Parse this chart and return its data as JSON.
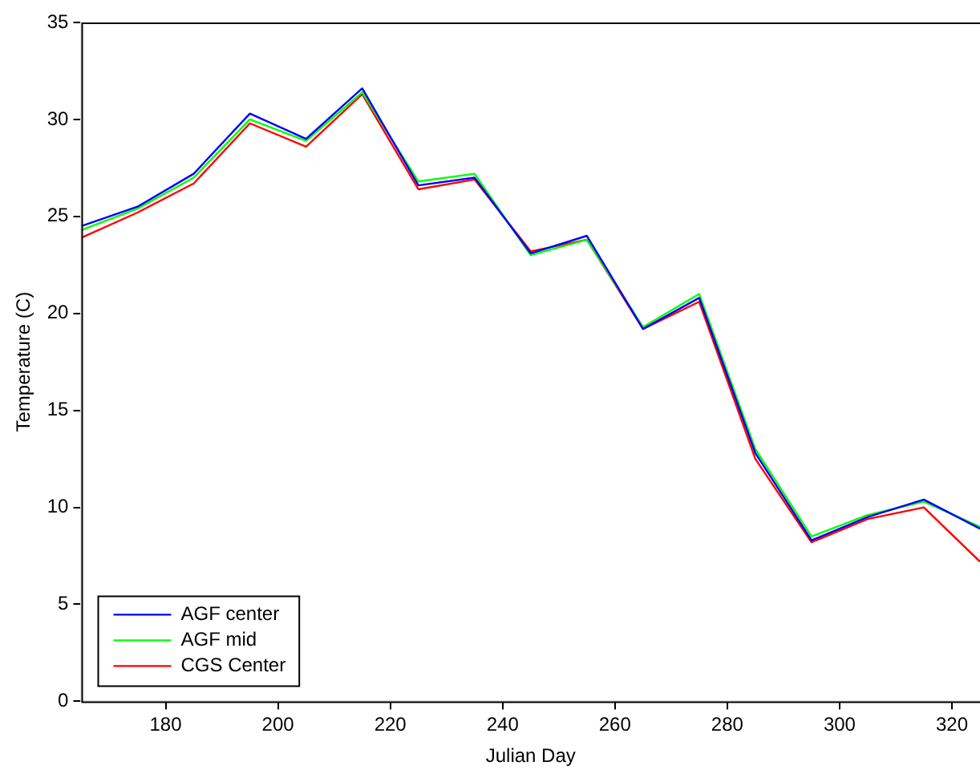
{
  "chart_data": {
    "type": "line",
    "xlabel": "Julian Day",
    "ylabel": "Temperature (C)",
    "x": [
      165,
      175,
      185,
      195,
      205,
      215,
      225,
      235,
      245,
      255,
      265,
      275,
      285,
      295,
      305,
      315,
      325
    ],
    "xlim": [
      165,
      325
    ],
    "xticks": [
      180,
      200,
      220,
      240,
      260,
      280,
      300,
      320
    ],
    "ylim": [
      0,
      35
    ],
    "yticks": [
      0,
      5,
      10,
      15,
      20,
      25,
      30,
      35
    ],
    "grid": false,
    "legend": "bottom left",
    "marker": "none",
    "line_style": "solid",
    "series": [
      {
        "name": "AGF center",
        "color": "#0000ff",
        "values": [
          24.5,
          25.5,
          27.2,
          30.3,
          29.0,
          31.6,
          26.6,
          27.0,
          23.1,
          24.0,
          19.2,
          20.8,
          12.8,
          8.3,
          9.5,
          10.4,
          8.9
        ]
      },
      {
        "name": "AGF mid",
        "color": "#00ff00",
        "values": [
          24.3,
          25.4,
          27.0,
          30.0,
          28.9,
          31.4,
          26.8,
          27.2,
          23.0,
          23.8,
          19.3,
          21.0,
          13.0,
          8.5,
          9.6,
          10.3,
          9.0
        ]
      },
      {
        "name": "CGS Center",
        "color": "#ff0000",
        "values": [
          23.9,
          25.2,
          26.7,
          29.8,
          28.6,
          31.3,
          26.4,
          26.9,
          23.2,
          23.8,
          19.2,
          20.6,
          12.5,
          8.2,
          9.4,
          10.0,
          7.2
        ]
      }
    ]
  }
}
